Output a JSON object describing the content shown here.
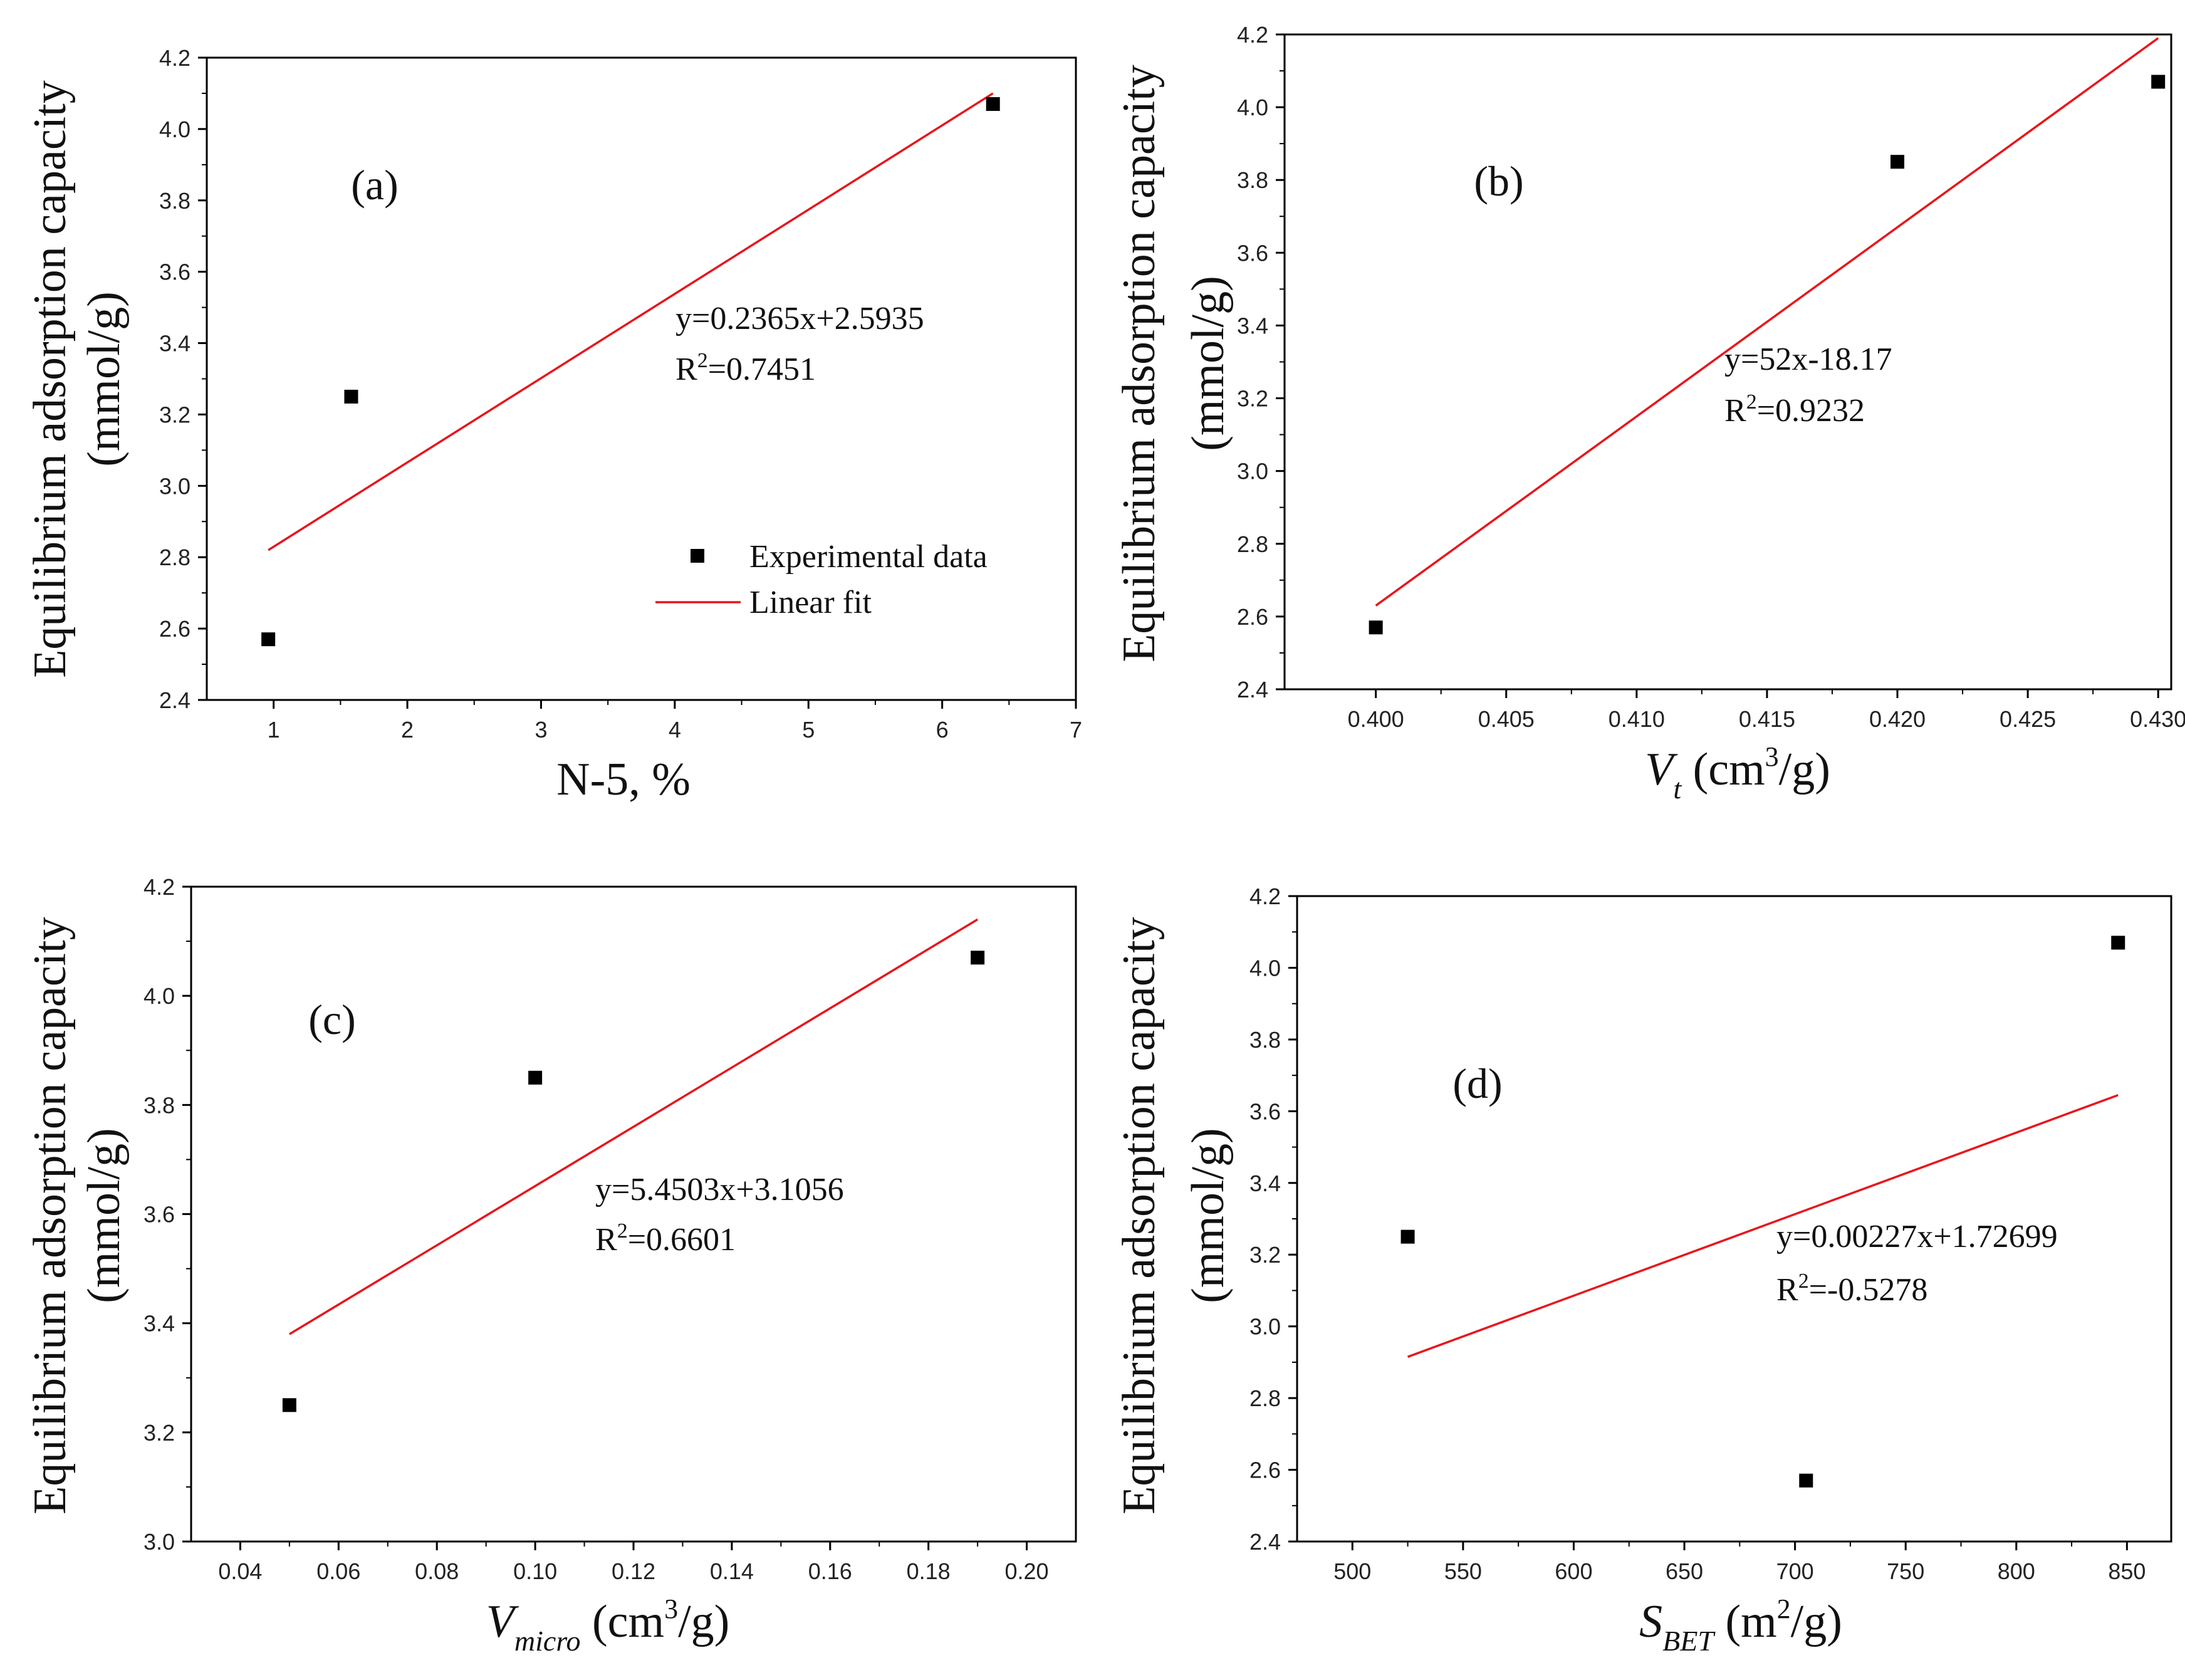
{
  "figure": {
    "chart_data": [
      {
        "panel": "(a)",
        "type": "scatter",
        "title": "",
        "xlabel": "N-5, %",
        "ylabel": [
          "Equilibrium adsorption capacity",
          "(mmol/g)"
        ],
        "xlim": [
          0.5,
          7
        ],
        "ylim": [
          2.4,
          4.2
        ],
        "xticks": [
          1,
          2,
          3,
          4,
          5,
          6,
          7
        ],
        "yticks": [
          2.4,
          2.6,
          2.8,
          3.0,
          3.2,
          3.4,
          3.6,
          3.8,
          4.0,
          4.2
        ],
        "xtick_labels": [
          "1",
          "2",
          "3",
          "4",
          "5",
          "6",
          "7"
        ],
        "ytick_labels": [
          "2.4",
          "2.6",
          "2.8",
          "3.0",
          "3.2",
          "3.4",
          "3.6",
          "3.8",
          "4.0",
          "4.2"
        ],
        "series": [
          {
            "name": "Experimental data",
            "kind": "points",
            "x": [
              0.96,
              1.58,
              6.38
            ],
            "y": [
              2.57,
              3.25,
              4.07
            ],
            "color": "#000000"
          },
          {
            "name": "Linear fit",
            "kind": "line",
            "x": [
              0.96,
              6.38
            ],
            "y": [
              2.82,
              4.1
            ],
            "color": "#e8161b"
          }
        ],
        "equation": "y=0.2365x+2.5935",
        "r2_prefix": "R",
        "r2_sup": "2",
        "r2_value": "=0.7451",
        "legend": {
          "placement": "bottom-right",
          "items": [
            {
              "label": "Experimental data",
              "symbol": "square"
            },
            {
              "label": "Linear fit",
              "symbol": "line"
            }
          ]
        }
      },
      {
        "panel": "(b)",
        "type": "scatter",
        "title": "",
        "xlabel_main": "V",
        "xlabel_sub": "t",
        "xlabel_unit": " (cm",
        "xlabel_sup": "3",
        "xlabel_end": "/g)",
        "ylabel": [
          "Equilibrium adsorption capacity",
          "(mmol/g)"
        ],
        "xlim": [
          0.3965,
          0.4305
        ],
        "ylim": [
          2.4,
          4.2
        ],
        "xticks": [
          0.4,
          0.405,
          0.41,
          0.415,
          0.42,
          0.425,
          0.43
        ],
        "yticks": [
          2.4,
          2.6,
          2.8,
          3.0,
          3.2,
          3.4,
          3.6,
          3.8,
          4.0,
          4.2
        ],
        "xtick_labels": [
          "0.400",
          "0.405",
          "0.410",
          "0.415",
          "0.420",
          "0.425",
          "0.430"
        ],
        "ytick_labels": [
          "2.4",
          "2.6",
          "2.8",
          "3.0",
          "3.2",
          "3.4",
          "3.6",
          "3.8",
          "4.0",
          "4.2"
        ],
        "series": [
          {
            "name": "Experimental data",
            "kind": "points",
            "x": [
              0.4,
              0.42,
              0.43
            ],
            "y": [
              2.57,
              3.85,
              4.07
            ],
            "color": "#000000"
          },
          {
            "name": "Linear fit",
            "kind": "line",
            "x": [
              0.4,
              0.43
            ],
            "y": [
              2.63,
              4.19
            ],
            "color": "#e8161b"
          }
        ],
        "equation": "y=52x-18.17",
        "r2_prefix": "R",
        "r2_sup": "2",
        "r2_value": "=0.9232"
      },
      {
        "panel": "(c)",
        "type": "scatter",
        "title": "",
        "xlabel_main": "V",
        "xlabel_sub": "micro",
        "xlabel_unit": " (cm",
        "xlabel_sup": "3",
        "xlabel_end": "/g)",
        "ylabel": [
          "Equilibrium adsorption capacity",
          "(mmol/g)"
        ],
        "xlim": [
          0.03,
          0.21
        ],
        "ylim": [
          3.0,
          4.2
        ],
        "xticks": [
          0.04,
          0.06,
          0.08,
          0.1,
          0.12,
          0.14,
          0.16,
          0.18,
          0.2
        ],
        "yticks": [
          3.0,
          3.2,
          3.4,
          3.6,
          3.8,
          4.0,
          4.2
        ],
        "xtick_labels": [
          "0.04",
          "0.06",
          "0.08",
          "0.10",
          "0.12",
          "0.14",
          "0.16",
          "0.18",
          "0.20"
        ],
        "ytick_labels": [
          "3.0",
          "3.2",
          "3.4",
          "3.6",
          "3.8",
          "4.0",
          "4.2"
        ],
        "series": [
          {
            "name": "Experimental data",
            "kind": "points",
            "x": [
              0.05,
              0.1,
              0.19
            ],
            "y": [
              3.25,
              3.85,
              4.07
            ],
            "color": "#000000"
          },
          {
            "name": "Linear fit",
            "kind": "line",
            "x": [
              0.05,
              0.19
            ],
            "y": [
              3.38,
              4.14
            ],
            "color": "#e8161b"
          }
        ],
        "equation": "y=5.4503x+3.1056",
        "r2_prefix": "R",
        "r2_sup": "2",
        "r2_value": "=0.6601"
      },
      {
        "panel": "(d)",
        "type": "scatter",
        "title": "",
        "xlabel_main": "S",
        "xlabel_sub": "BET",
        "xlabel_unit": " (m",
        "xlabel_sup": "2",
        "xlabel_end": "/g)",
        "ylabel": [
          "Equilibrium adsorption capacity",
          "(mmol/g)"
        ],
        "xlim": [
          475,
          870
        ],
        "ylim": [
          2.4,
          4.2
        ],
        "xticks": [
          500,
          550,
          600,
          650,
          700,
          750,
          800,
          850
        ],
        "yticks": [
          2.4,
          2.6,
          2.8,
          3.0,
          3.2,
          3.4,
          3.6,
          3.8,
          4.0,
          4.2
        ],
        "xtick_labels": [
          "500",
          "550",
          "600",
          "650",
          "700",
          "750",
          "800",
          "850"
        ],
        "ytick_labels": [
          "2.4",
          "2.6",
          "2.8",
          "3.0",
          "3.2",
          "3.4",
          "3.6",
          "3.8",
          "4.0",
          "4.2"
        ],
        "series": [
          {
            "name": "Experimental data",
            "kind": "points",
            "x": [
              525,
              705,
              846
            ],
            "y": [
              3.25,
              2.57,
              4.07
            ],
            "color": "#000000"
          },
          {
            "name": "Linear fit",
            "kind": "line",
            "x": [
              525,
              846
            ],
            "y": [
              2.915,
              3.645
            ],
            "color": "#e8161b"
          }
        ],
        "equation": "y=0.00227x+1.72699",
        "r2_prefix": "R",
        "r2_sup": "2",
        "r2_value": "=-0.5278"
      }
    ]
  }
}
